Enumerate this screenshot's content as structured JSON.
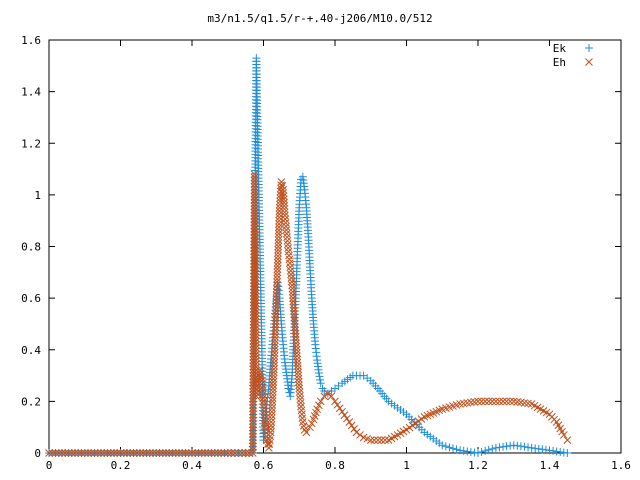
{
  "chart_data": {
    "type": "scatter",
    "title": "m3/n1.5/q1.5/r-+.40-j206/M10.0/512",
    "xlabel": "",
    "ylabel": "",
    "xlim": [
      0,
      1.6
    ],
    "ylim": [
      0,
      1.6
    ],
    "x_ticks": [
      "0",
      "0.2",
      "0.4",
      "0.6",
      "0.8",
      "1",
      "1.2",
      "1.4",
      "1.6"
    ],
    "y_ticks": [
      "0",
      "0.2",
      "0.4",
      "0.6",
      "0.8",
      "1",
      "1.2",
      "1.4",
      "1.6"
    ],
    "grid": false,
    "legend_position": "top-right",
    "series": [
      {
        "name": "Ek",
        "marker": "plus",
        "color": "#1f8fdc",
        "x": [
          0.0,
          0.1,
          0.2,
          0.3,
          0.4,
          0.5,
          0.57,
          0.58,
          0.585,
          0.59,
          0.595,
          0.6,
          0.605,
          0.61,
          0.615,
          0.62,
          0.625,
          0.63,
          0.635,
          0.64,
          0.645,
          0.65,
          0.655,
          0.66,
          0.665,
          0.67,
          0.675,
          0.68,
          0.685,
          0.69,
          0.695,
          0.7,
          0.705,
          0.71,
          0.715,
          0.72,
          0.725,
          0.73,
          0.735,
          0.74,
          0.745,
          0.75,
          0.755,
          0.76,
          0.765,
          0.77,
          0.78,
          0.79,
          0.8,
          0.82,
          0.85,
          0.88,
          0.9,
          0.92,
          0.95,
          1.0,
          1.05,
          1.1,
          1.15,
          1.2,
          1.25,
          1.3,
          1.35,
          1.4,
          1.45
        ],
        "y": [
          0.0,
          0.0,
          0.0,
          0.0,
          0.0,
          0.0,
          0.0,
          1.53,
          1.14,
          0.79,
          0.43,
          0.05,
          0.12,
          0.2,
          0.26,
          0.35,
          0.42,
          0.5,
          0.58,
          0.66,
          0.6,
          0.5,
          0.42,
          0.35,
          0.3,
          0.25,
          0.22,
          0.3,
          0.45,
          0.6,
          0.78,
          0.95,
          1.06,
          1.07,
          1.02,
          0.95,
          0.85,
          0.72,
          0.6,
          0.5,
          0.42,
          0.36,
          0.31,
          0.27,
          0.25,
          0.24,
          0.23,
          0.24,
          0.25,
          0.27,
          0.3,
          0.3,
          0.28,
          0.25,
          0.2,
          0.15,
          0.08,
          0.03,
          0.01,
          0.0,
          0.02,
          0.03,
          0.02,
          0.01,
          0.0
        ]
      },
      {
        "name": "Eh",
        "marker": "cross",
        "color": "#c0501c",
        "x": [
          0.0,
          0.1,
          0.2,
          0.3,
          0.4,
          0.5,
          0.57,
          0.575,
          0.58,
          0.585,
          0.59,
          0.595,
          0.6,
          0.605,
          0.61,
          0.615,
          0.62,
          0.625,
          0.63,
          0.635,
          0.64,
          0.645,
          0.65,
          0.655,
          0.66,
          0.665,
          0.67,
          0.675,
          0.68,
          0.685,
          0.69,
          0.695,
          0.7,
          0.705,
          0.71,
          0.715,
          0.72,
          0.73,
          0.74,
          0.75,
          0.76,
          0.77,
          0.78,
          0.79,
          0.8,
          0.82,
          0.84,
          0.86,
          0.88,
          0.9,
          0.92,
          0.95,
          1.0,
          1.05,
          1.1,
          1.15,
          1.2,
          1.25,
          1.3,
          1.35,
          1.4,
          1.42,
          1.44,
          1.45
        ],
        "y": [
          0.0,
          0.0,
          0.0,
          0.0,
          0.0,
          0.0,
          0.0,
          1.08,
          0.22,
          0.3,
          0.32,
          0.28,
          0.2,
          0.12,
          0.05,
          0.02,
          0.08,
          0.2,
          0.35,
          0.55,
          0.75,
          0.95,
          1.05,
          1.02,
          0.92,
          0.85,
          0.78,
          0.72,
          0.65,
          0.55,
          0.45,
          0.35,
          0.25,
          0.18,
          0.12,
          0.09,
          0.08,
          0.1,
          0.13,
          0.17,
          0.2,
          0.22,
          0.23,
          0.22,
          0.2,
          0.16,
          0.12,
          0.08,
          0.06,
          0.05,
          0.05,
          0.05,
          0.09,
          0.14,
          0.17,
          0.19,
          0.2,
          0.2,
          0.2,
          0.19,
          0.15,
          0.12,
          0.07,
          0.05
        ]
      }
    ]
  }
}
